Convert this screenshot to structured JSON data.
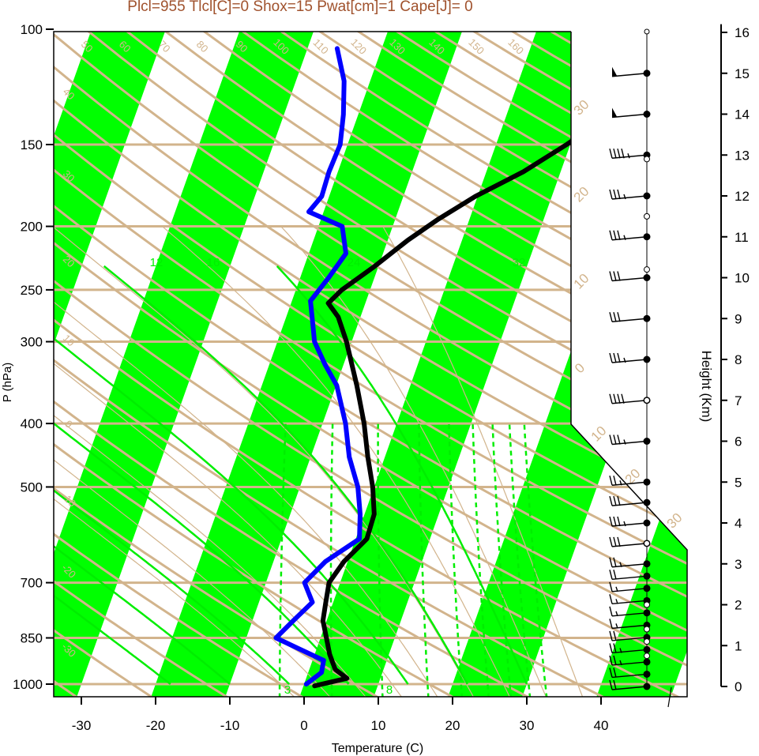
{
  "chart_data": {
    "type": "skew-t",
    "title": "Plcl=955 Tlcl[C]=0 Shox=15 Pwat[cm]=1 Cape[J]= 0",
    "xlabel": "Temperature (C)",
    "ylabel": "P (hPa)",
    "y2label": "Height (Km)",
    "y_scale": "log",
    "xlim": [
      -34,
      36
    ],
    "ylim": [
      1050,
      100
    ],
    "x_ticks": [
      "-30",
      "-20",
      "-10",
      "0",
      "10",
      "20",
      "30",
      "40"
    ],
    "x_tick_values": [
      -30,
      -20,
      -10,
      0,
      10,
      20,
      30,
      40
    ],
    "p_ticks": [
      "100",
      "150",
      "200",
      "250",
      "300",
      "400",
      "500",
      "700",
      "850",
      "1000"
    ],
    "p_tick_values": [
      100,
      150,
      200,
      250,
      300,
      400,
      500,
      700,
      850,
      1000
    ],
    "height_ticks": [
      "0",
      "1",
      "2",
      "3",
      "4",
      "5",
      "6",
      "7",
      "8",
      "9",
      "10",
      "11",
      "12",
      "13",
      "14",
      "15",
      "16"
    ],
    "isotherm_band_colors": [
      "#00ff00",
      "#ffffff"
    ],
    "isotherm_band_width_c": 10,
    "grid_color": "#d2b48c",
    "mixing_ratio_color": "#00ee00",
    "isotherm_labels": [
      "50",
      "60",
      "70",
      "80",
      "90",
      "100",
      "110",
      "120",
      "130",
      "140",
      "150",
      "160",
      "40",
      "30",
      "20",
      "10",
      "0",
      "-10",
      "-20",
      "-30"
    ],
    "theta_labels": [
      "30",
      "20",
      "10",
      "0",
      "10",
      "20",
      "30"
    ],
    "mixing_ratio_labels": [
      "12",
      "16",
      "24",
      "32",
      "3",
      "8"
    ],
    "series": [
      {
        "name": "temperature",
        "color": "#000000",
        "points": [
          [
            1006,
            1.5
          ],
          [
            980,
            5.5
          ],
          [
            950,
            3.5
          ],
          [
            900,
            2.0
          ],
          [
            850,
            0.8
          ],
          [
            800,
            -0.5
          ],
          [
            750,
            -1.0
          ],
          [
            700,
            -1.5
          ],
          [
            650,
            -0.5
          ],
          [
            600,
            1.5
          ],
          [
            550,
            1.3
          ],
          [
            500,
            -0.2
          ],
          [
            450,
            -2.3
          ],
          [
            400,
            -4.4
          ],
          [
            350,
            -7.2
          ],
          [
            300,
            -10.7
          ],
          [
            275,
            -13.0
          ],
          [
            262,
            -15.0
          ],
          [
            250,
            -13.8
          ],
          [
            230,
            -10.5
          ],
          [
            210,
            -7.3
          ],
          [
            195,
            -4.2
          ],
          [
            180,
            -0.3
          ],
          [
            165,
            5.0
          ],
          [
            150,
            9.5
          ],
          [
            135,
            14.0
          ],
          [
            120,
            17.5
          ],
          [
            110,
            18.7
          ]
        ]
      },
      {
        "name": "dewpoint",
        "color": "#0000ff",
        "points": [
          [
            1000,
            0.3
          ],
          [
            960,
            1.8
          ],
          [
            920,
            1.5
          ],
          [
            850,
            -6.0
          ],
          [
            800,
            -4.5
          ],
          [
            750,
            -2.8
          ],
          [
            700,
            -4.8
          ],
          [
            650,
            -3.0
          ],
          [
            600,
            0.5
          ],
          [
            550,
            -0.6
          ],
          [
            500,
            -2.2
          ],
          [
            450,
            -4.8
          ],
          [
            400,
            -6.9
          ],
          [
            350,
            -9.9
          ],
          [
            325,
            -12.5
          ],
          [
            300,
            -15.0
          ],
          [
            280,
            -16.2
          ],
          [
            260,
            -17.5
          ],
          [
            240,
            -16.2
          ],
          [
            220,
            -15.0
          ],
          [
            200,
            -16.8
          ],
          [
            190,
            -22.0
          ],
          [
            180,
            -21.0
          ],
          [
            165,
            -21.2
          ],
          [
            150,
            -21.0
          ],
          [
            135,
            -22.0
          ],
          [
            120,
            -23.5
          ],
          [
            107,
            -26.0
          ]
        ]
      }
    ],
    "dry_adiabat_theta_k": [
      220,
      230,
      240,
      250,
      260,
      270,
      280,
      290,
      300,
      310,
      320,
      330,
      340,
      350,
      360,
      370,
      380,
      390,
      400,
      410,
      420,
      430,
      440,
      450,
      460,
      470,
      480,
      490,
      500,
      510,
      520,
      530
    ],
    "moist_adiabat_theta_k": [
      270,
      275,
      280,
      285,
      290,
      295,
      300,
      305,
      310
    ],
    "mixing_ratio_gkg": [
      3,
      5,
      8,
      12,
      16,
      20,
      24,
      28,
      32
    ],
    "wind_heights_km": [
      0,
      0.3,
      0.6,
      0.9,
      1.2,
      1.5,
      1.8,
      2.1,
      2.4,
      2.7,
      3,
      3.5,
      4,
      4.5,
      5,
      6,
      7,
      8,
      9,
      10,
      11,
      12,
      13,
      14,
      15
    ],
    "wind_barbs_kt": [
      20,
      20,
      25,
      25,
      20,
      15,
      15,
      15,
      15,
      20,
      25,
      30,
      35,
      30,
      25,
      35,
      40,
      35,
      30,
      30,
      35,
      35,
      45,
      50,
      50
    ]
  }
}
